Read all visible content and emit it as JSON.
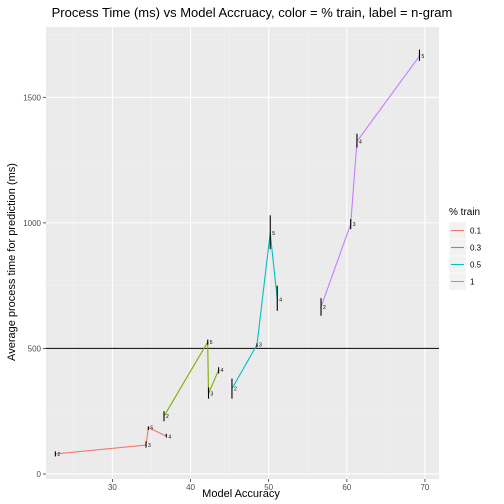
{
  "chart_data": {
    "type": "line",
    "title": "Process Time (ms) vs Model Accruacy, color = % train, label = n-gram",
    "xlabel": "Model Accuracy",
    "ylabel": "Average process time for prediction (ms)",
    "xlim": [
      21.5,
      71.8
    ],
    "ylim": [
      -20,
      1780
    ],
    "xticks": [
      30,
      40,
      50,
      60,
      70
    ],
    "yticks": [
      0,
      500,
      1000,
      1500
    ],
    "grid": true,
    "hline": {
      "y": 500,
      "color": "#000000"
    },
    "legend": {
      "title": "% train",
      "position": "right"
    },
    "series": [
      {
        "name": "0.1",
        "color": "#F8766D",
        "points": [
          {
            "x": 22.7,
            "y": 80,
            "label": "2",
            "ymin": 70,
            "ymax": 90
          },
          {
            "x": 34.3,
            "y": 115,
            "label": "3",
            "ymin": 105,
            "ymax": 130
          },
          {
            "x": 34.6,
            "y": 185,
            "label": "5",
            "ymin": 175,
            "ymax": 190
          },
          {
            "x": 36.9,
            "y": 150,
            "label": "4",
            "ymin": 145,
            "ymax": 160
          }
        ]
      },
      {
        "name": "0.3",
        "color": "#7CAE00",
        "points": [
          {
            "x": 36.6,
            "y": 230,
            "label": "2",
            "ymin": 210,
            "ymax": 250
          },
          {
            "x": 42.2,
            "y": 525,
            "label": "5",
            "ymin": 515,
            "ymax": 535
          },
          {
            "x": 42.3,
            "y": 320,
            "label": "3",
            "ymin": 300,
            "ymax": 345
          },
          {
            "x": 43.6,
            "y": 415,
            "label": "4",
            "ymin": 400,
            "ymax": 425
          }
        ]
      },
      {
        "name": "0.5",
        "color": "#00BFC4",
        "points": [
          {
            "x": 45.3,
            "y": 340,
            "label": "2",
            "ymin": 300,
            "ymax": 380
          },
          {
            "x": 48.5,
            "y": 515,
            "label": "3",
            "ymin": 505,
            "ymax": 520
          },
          {
            "x": 50.2,
            "y": 960,
            "label": "5",
            "ymin": 895,
            "ymax": 1030
          },
          {
            "x": 51.1,
            "y": 695,
            "label": "4",
            "ymin": 650,
            "ymax": 750
          }
        ]
      },
      {
        "name": "1",
        "color": "#C77CFF",
        "points": [
          {
            "x": 56.7,
            "y": 665,
            "label": "2",
            "ymin": 630,
            "ymax": 700
          },
          {
            "x": 60.5,
            "y": 995,
            "label": "3",
            "ymin": 975,
            "ymax": 1015
          },
          {
            "x": 61.3,
            "y": 1325,
            "label": "4",
            "ymin": 1300,
            "ymax": 1355
          },
          {
            "x": 69.3,
            "y": 1665,
            "label": "5",
            "ymin": 1645,
            "ymax": 1690
          }
        ]
      }
    ]
  }
}
